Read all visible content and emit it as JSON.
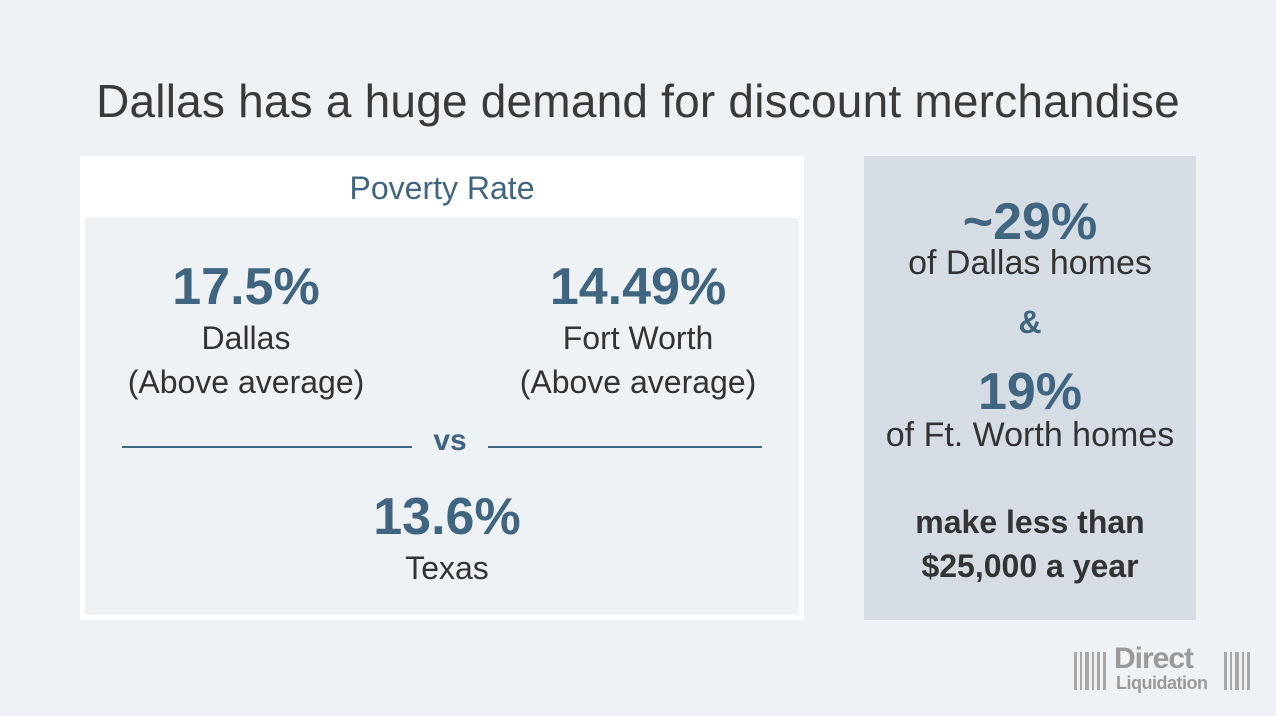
{
  "title": "Dallas has a huge demand for discount merchandise",
  "poverty_card": {
    "heading": "Poverty Rate",
    "dallas": {
      "value": "17.5%",
      "label": "Dallas",
      "note": "(Above average)"
    },
    "fort_worth": {
      "value": "14.49%",
      "label": "Fort Worth",
      "note": "(Above average)"
    },
    "vs_label": "vs",
    "texas": {
      "value": "13.6%",
      "label": "Texas"
    }
  },
  "side_panel": {
    "dallas_pct": "~29%",
    "dallas_text": "of Dallas homes",
    "ampersand": "&",
    "fw_pct": "19%",
    "fw_text": "of Ft. Worth homes",
    "line1": "make less than",
    "line2": "$25,000 a year"
  },
  "logo": {
    "line1": "Direct",
    "line2": "Liquidation"
  },
  "colors": {
    "accent": "#3f6580",
    "background": "#eff2f5",
    "panel": "#d5dce3"
  }
}
